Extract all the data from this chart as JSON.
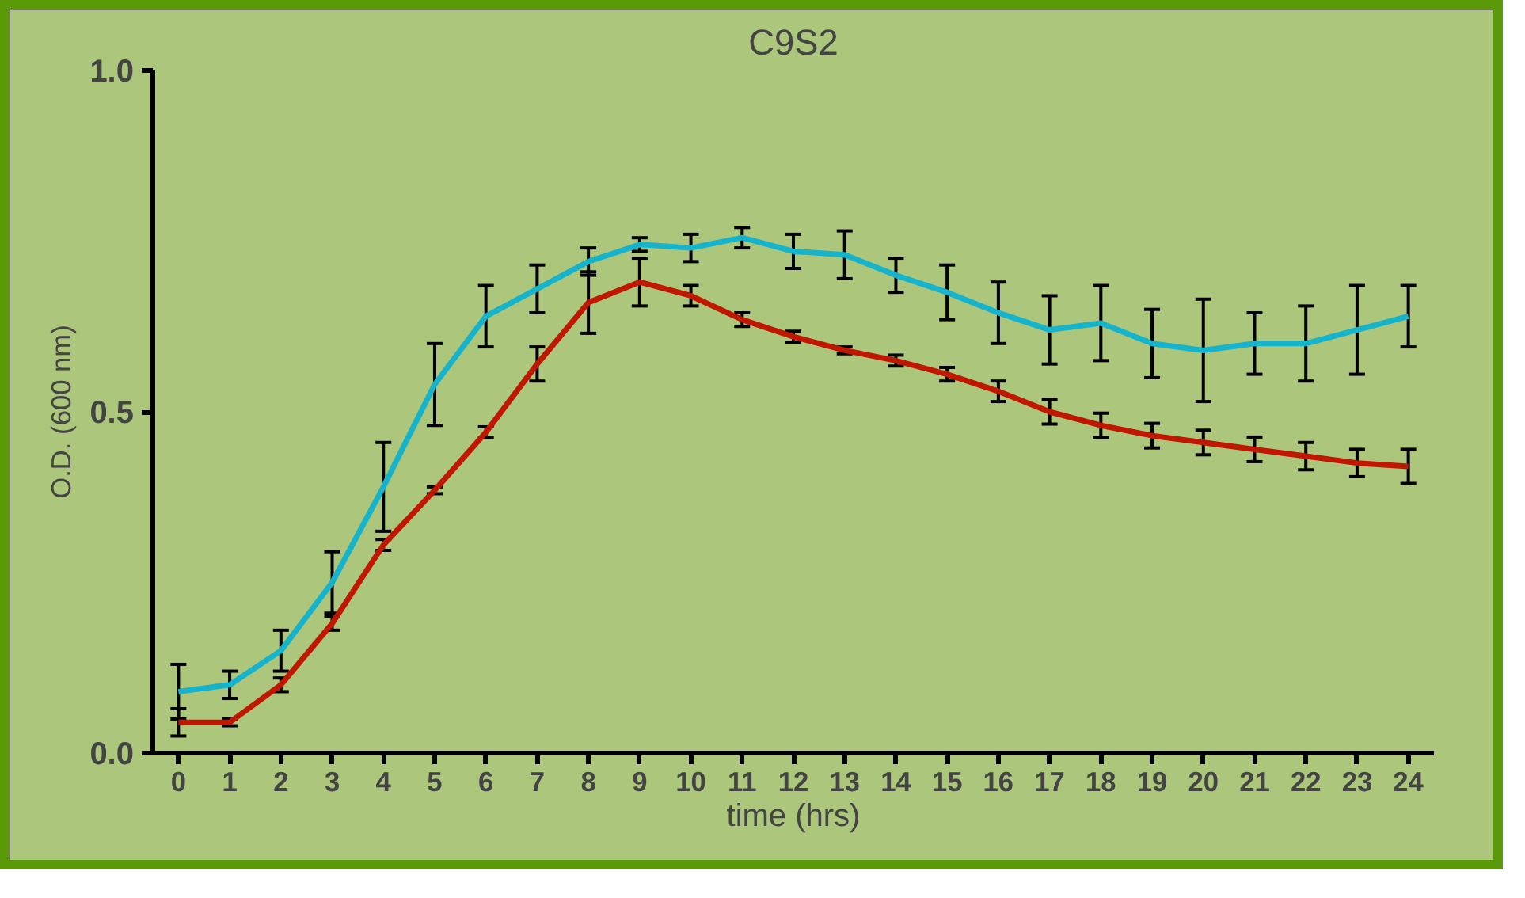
{
  "chart_data": {
    "type": "line",
    "title": "C9S2",
    "xlabel": "time (hrs)",
    "ylabel": "O.D. (600 nm)",
    "x": [
      0,
      1,
      2,
      3,
      4,
      5,
      6,
      7,
      8,
      9,
      10,
      11,
      12,
      13,
      14,
      15,
      16,
      17,
      18,
      19,
      20,
      21,
      22,
      23,
      24
    ],
    "xlim": [
      -0.5,
      24.5
    ],
    "xticks": [
      0,
      1,
      2,
      3,
      4,
      5,
      6,
      7,
      8,
      9,
      10,
      11,
      12,
      13,
      14,
      15,
      16,
      17,
      18,
      19,
      20,
      21,
      22,
      23,
      24
    ],
    "ylim": [
      0,
      1
    ],
    "yticks": [
      {
        "value": 0,
        "label": "0.0"
      },
      {
        "value": 0.5,
        "label": "0.5"
      },
      {
        "value": 1,
        "label": "1.0"
      }
    ],
    "grid": false,
    "marker": "none",
    "line_style": "solid",
    "series": [
      {
        "color": "#16b4cc",
        "values": [
          0.09,
          0.1,
          0.15,
          0.25,
          0.39,
          0.54,
          0.64,
          0.68,
          0.72,
          0.745,
          0.74,
          0.755,
          0.735,
          0.73,
          0.7,
          0.675,
          0.645,
          0.62,
          0.63,
          0.6,
          0.59,
          0.6,
          0.6,
          0.62,
          0.64
        ],
        "errors": [
          0.04,
          0.02,
          0.03,
          0.045,
          0.065,
          0.06,
          0.045,
          0.035,
          0.02,
          0.01,
          0.02,
          0.015,
          0.025,
          0.035,
          0.025,
          0.04,
          0.045,
          0.05,
          0.055,
          0.05,
          0.075,
          0.045,
          0.055,
          0.065,
          0.045
        ]
      },
      {
        "color": "#c01800",
        "values": [
          0.045,
          0.045,
          0.1,
          0.19,
          0.305,
          0.385,
          0.47,
          0.57,
          0.66,
          0.69,
          0.67,
          0.635,
          0.61,
          0.59,
          0.575,
          0.555,
          0.53,
          0.5,
          0.48,
          0.465,
          0.455,
          0.445,
          0.435,
          0.425,
          0.42
        ],
        "errors": [
          0.02,
          0.005,
          0.01,
          0.01,
          0.008,
          0.005,
          0.008,
          0.025,
          0.045,
          0.035,
          0.015,
          0.01,
          0.008,
          0.005,
          0.008,
          0.01,
          0.015,
          0.018,
          0.018,
          0.018,
          0.018,
          0.018,
          0.02,
          0.02,
          0.025
        ]
      }
    ]
  }
}
